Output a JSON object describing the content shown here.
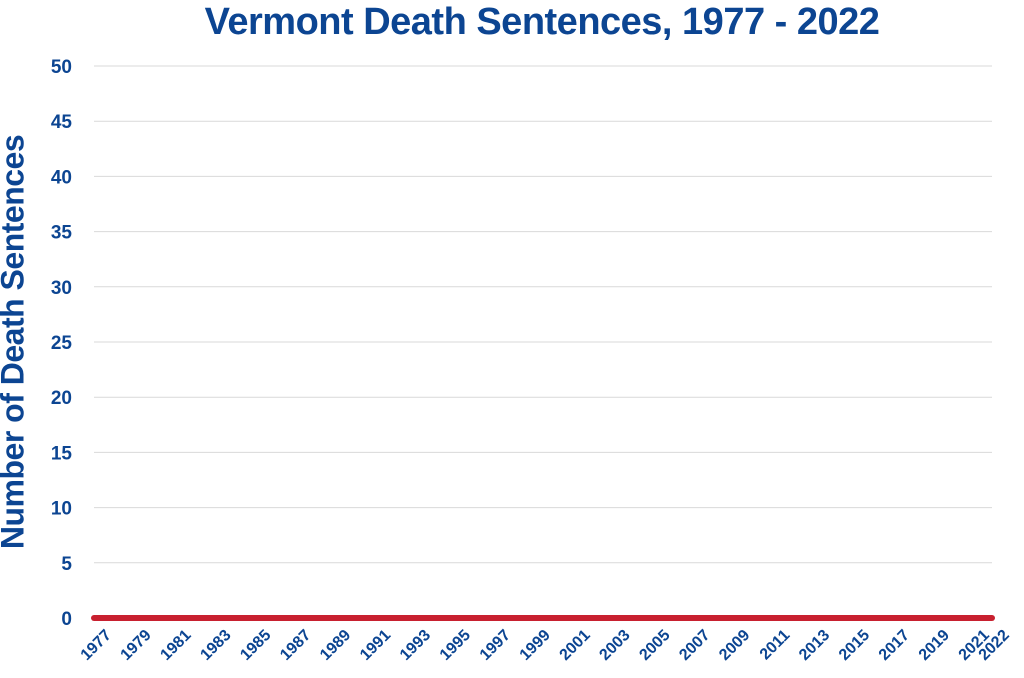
{
  "colors": {
    "title": "#0c4592",
    "axis_text": "#0c4592",
    "grid": "#d9d9d9",
    "series_line": "#c8202f",
    "shadow": "#8a8a8a"
  },
  "chart_data": {
    "type": "line",
    "title": "Vermont Death Sentences, 1977 - 2022",
    "ylabel": "Number of Death Sentences",
    "xlabel": "",
    "ylim": [
      0,
      50
    ],
    "y_ticks": [
      0,
      5,
      10,
      15,
      20,
      25,
      30,
      35,
      40,
      45,
      50
    ],
    "x_tick_labels": [
      "1977",
      "1979",
      "1981",
      "1983",
      "1985",
      "1987",
      "1989",
      "1991",
      "1993",
      "1995",
      "1997",
      "1999",
      "2001",
      "2003",
      "2005",
      "2007",
      "2009",
      "2011",
      "2013",
      "2015",
      "2017",
      "2019",
      "2021",
      "2022"
    ],
    "grid": "horizontal",
    "legend": "none",
    "x": [
      1977,
      1978,
      1979,
      1980,
      1981,
      1982,
      1983,
      1984,
      1985,
      1986,
      1987,
      1988,
      1989,
      1990,
      1991,
      1992,
      1993,
      1994,
      1995,
      1996,
      1997,
      1998,
      1999,
      2000,
      2001,
      2002,
      2003,
      2004,
      2005,
      2006,
      2007,
      2008,
      2009,
      2010,
      2011,
      2012,
      2013,
      2014,
      2015,
      2016,
      2017,
      2018,
      2019,
      2020,
      2021,
      2022
    ],
    "series": [
      {
        "values": [
          0,
          0,
          0,
          0,
          0,
          0,
          0,
          0,
          0,
          0,
          0,
          0,
          0,
          0,
          0,
          0,
          0,
          0,
          0,
          0,
          0,
          0,
          0,
          0,
          0,
          0,
          0,
          0,
          0,
          0,
          0,
          0,
          0,
          0,
          0,
          0,
          0,
          0,
          0,
          0,
          0,
          0,
          0,
          0,
          0,
          0
        ]
      }
    ]
  }
}
